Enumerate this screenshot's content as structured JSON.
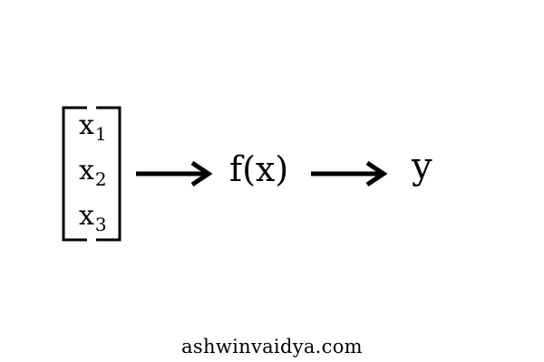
{
  "inputs": [
    {
      "symbol": "x",
      "subscript": "1"
    },
    {
      "symbol": "x",
      "subscript": "2"
    },
    {
      "symbol": "x",
      "subscript": "3"
    }
  ],
  "function_label": "f(x)",
  "output_label": "y",
  "footer": {
    "text": "ashwinvaidya.com"
  },
  "colors": {
    "ink": "#000000",
    "background": "#ffffff"
  },
  "icons": {
    "bracket": "square-bracket-vector",
    "arrow": "right-arrow-icon"
  }
}
